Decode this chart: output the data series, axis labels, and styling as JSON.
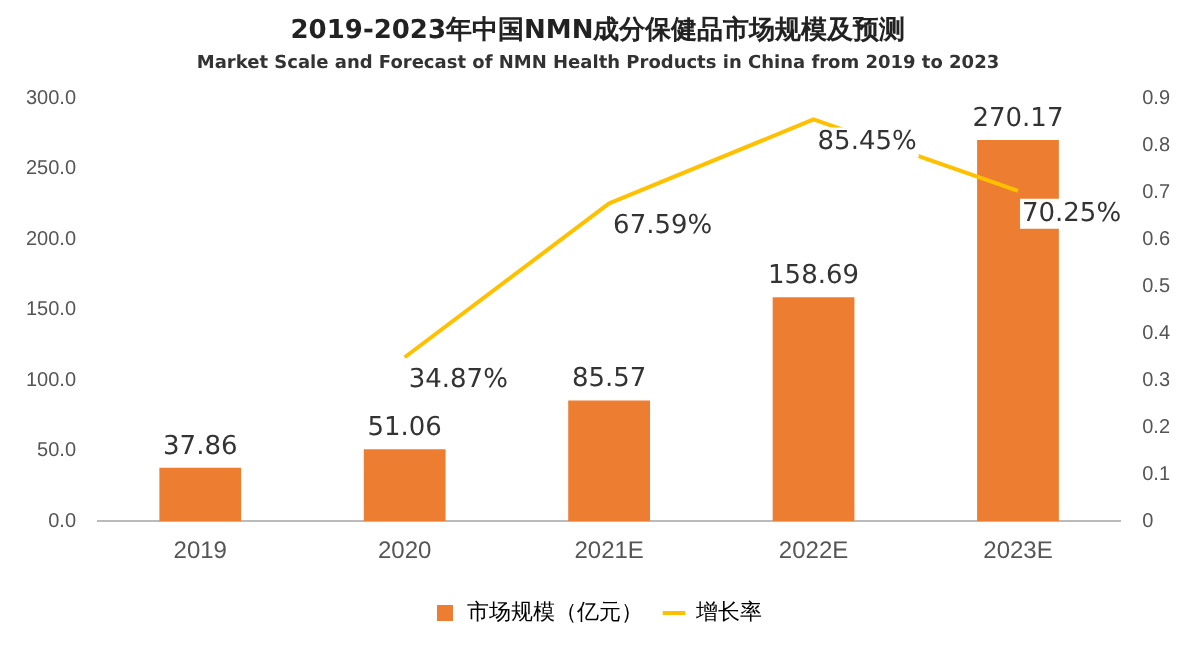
{
  "chart_data": {
    "type": "bar",
    "title": "2019-2023年中国NMN成分保健品市场规模及预测",
    "subtitle": "Market Scale and Forecast of NMN Health Products in China from 2019 to 2023",
    "categories": [
      "2019",
      "2020",
      "2021E",
      "2022E",
      "2023E"
    ],
    "series": [
      {
        "name": "市场规模（亿元）",
        "color": "#ed7d31",
        "values": [
          37.86,
          51.06,
          85.57,
          158.69,
          270.17
        ],
        "value_labels": [
          "37.86",
          "51.06",
          "85.57",
          "158.69",
          "270.17"
        ]
      },
      {
        "name": "增长率",
        "type": "line",
        "axis": "y2",
        "color": "#ffc000",
        "values": [
          null,
          0.3487,
          0.6759,
          0.8545,
          0.7025
        ],
        "value_labels": [
          null,
          "34.87%",
          "67.59%",
          "85.45%",
          "70.25%"
        ]
      }
    ],
    "ylim": [
      0,
      300
    ],
    "yticks": [
      {
        "value": 0,
        "label": "0.0"
      },
      {
        "value": 50,
        "label": "50.0"
      },
      {
        "value": 100,
        "label": "100.0"
      },
      {
        "value": 150,
        "label": "150.0"
      },
      {
        "value": 200,
        "label": "200.0"
      },
      {
        "value": 250,
        "label": "250.0"
      },
      {
        "value": 300,
        "label": "300.0"
      }
    ],
    "y2lim": [
      0,
      0.9
    ],
    "y2ticks": [
      0,
      0.1,
      0.2,
      0.3,
      0.4,
      0.5,
      0.6,
      0.7,
      0.8,
      0.9
    ],
    "grid": false,
    "legend": "bottom",
    "marker": "none"
  }
}
